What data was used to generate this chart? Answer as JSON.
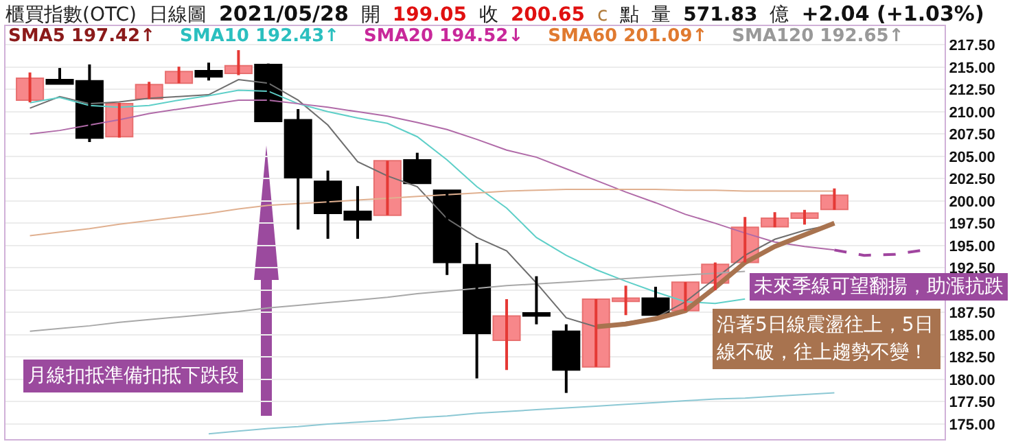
{
  "chart_data": {
    "type": "candlestick",
    "categories": [
      null,
      null,
      null,
      null,
      null,
      null,
      null,
      null,
      null,
      null,
      null,
      null,
      null,
      null,
      null,
      null,
      null,
      null,
      null,
      null,
      null,
      null,
      null,
      null,
      null,
      null,
      null,
      null,
      null,
      null,
      null
    ],
    "ohlc": [
      [
        211.3,
        214.4,
        211.05,
        213.76
      ],
      [
        213.6,
        214.9,
        213.1,
        213.1
      ],
      [
        213.46,
        215.3,
        206.6,
        207.05
      ],
      [
        207.2,
        211.0,
        207.1,
        210.9
      ],
      [
        211.45,
        213.35,
        211.45,
        213.05
      ],
      [
        213.2,
        215.05,
        213.2,
        214.5
      ],
      [
        214.6,
        215.5,
        213.5,
        213.9
      ],
      [
        214.3,
        216.9,
        214.1,
        215.15
      ],
      [
        215.3,
        215.4,
        208.85,
        208.9
      ],
      [
        209.1,
        210.3,
        196.8,
        202.6
      ],
      [
        202.2,
        203.4,
        195.76,
        198.6
      ],
      [
        198.84,
        201.66,
        195.76,
        197.87
      ],
      [
        198.4,
        204.5,
        198.4,
        204.5
      ],
      [
        204.6,
        205.4,
        201.97,
        201.97
      ],
      [
        201.2,
        201.2,
        191.7,
        193.1
      ],
      [
        192.85,
        195.3,
        180.1,
        185.15
      ],
      [
        184.38,
        188.99,
        181.05,
        187.1
      ],
      [
        187.46,
        191.56,
        186.17,
        187.1
      ],
      [
        185.4,
        186.17,
        178.48,
        181.05
      ],
      [
        181.4,
        188.99,
        181.4,
        188.99
      ],
      [
        188.74,
        190.5,
        187.2,
        189.1
      ],
      [
        189.1,
        190.38,
        187.2,
        187.2
      ],
      [
        187.7,
        190.9,
        187.7,
        190.9
      ],
      [
        190.8,
        193.1,
        190.0,
        192.9
      ],
      [
        193.1,
        198.2,
        193.1,
        197.05
      ],
      [
        197.1,
        198.74,
        197.05,
        198.07
      ],
      [
        198.07,
        199.0,
        197.35,
        198.64
      ],
      [
        199.05,
        201.4,
        199.0,
        200.65
      ],
      null,
      null,
      null
    ],
    "series": [
      {
        "type": "line",
        "color": "#6e6e6e",
        "values": [
          210.4,
          211.7,
          210.9,
          211.1,
          211.5,
          211.7,
          211.9,
          213.6,
          213.2,
          211.3,
          208.5,
          204.4,
          202.8,
          201.6,
          198.0,
          195.9,
          194.4,
          190.8,
          186.9,
          185.9,
          186.4,
          186.9,
          188.7,
          191.3,
          193.9,
          195.7,
          196.7,
          197.4,
          null,
          null,
          null
        ]
      },
      {
        "type": "line",
        "color": "#5ecfc8",
        "values": [
          211.0,
          211.6,
          210.7,
          210.5,
          210.7,
          211.3,
          211.8,
          212.4,
          212.3,
          210.9,
          210.0,
          209.3,
          208.7,
          207.2,
          204.6,
          201.6,
          199.2,
          195.9,
          193.9,
          192.3,
          191.0,
          189.8,
          188.7,
          188.5,
          189.0,
          null,
          null,
          null,
          null,
          null,
          null
        ]
      },
      {
        "type": "line",
        "color": "#b06aa8",
        "values": [
          207.5,
          207.9,
          208.5,
          209.1,
          209.8,
          210.3,
          210.8,
          211.3,
          211.3,
          210.9,
          210.5,
          210.0,
          209.5,
          208.8,
          208.0,
          206.9,
          205.7,
          204.9,
          203.6,
          202.3,
          201.0,
          199.8,
          198.5,
          197.5,
          196.4,
          195.4,
          194.9,
          194.5,
          null,
          null,
          null
        ]
      },
      {
        "type": "line",
        "color": "#e0b090",
        "values": [
          196.1,
          196.5,
          196.9,
          197.4,
          197.8,
          198.2,
          198.6,
          199.1,
          199.5,
          199.7,
          199.9,
          200.1,
          200.3,
          200.5,
          200.7,
          200.9,
          201.1,
          201.2,
          201.3,
          201.3,
          201.3,
          201.3,
          201.2,
          201.2,
          201.1,
          201.1,
          201.1,
          201.1,
          null,
          null,
          null
        ]
      },
      {
        "type": "line",
        "color": "#a8a8a8",
        "values": [
          185.4,
          185.7,
          186.0,
          186.4,
          186.7,
          187.0,
          187.3,
          187.6,
          188.0,
          188.3,
          188.6,
          188.9,
          189.2,
          189.6,
          189.9,
          190.2,
          190.5,
          190.7,
          190.9,
          191.1,
          191.3,
          191.5,
          191.7,
          191.9,
          192.1,
          null,
          null,
          null,
          null,
          null,
          null
        ]
      },
      {
        "type": "line",
        "color": "#8cc8d4",
        "values": [
          null,
          null,
          null,
          null,
          null,
          null,
          173.9,
          174.2,
          174.5,
          174.7,
          175.0,
          175.2,
          175.4,
          175.7,
          175.9,
          176.2,
          176.4,
          176.6,
          176.8,
          177.0,
          177.2,
          177.4,
          177.6,
          177.8,
          177.9,
          178.1,
          178.3,
          178.5,
          null,
          null,
          null
        ]
      },
      {
        "type": "line",
        "color": "#a8734f",
        "line_style": "solid",
        "values": [
          null,
          null,
          null,
          null,
          null,
          null,
          null,
          null,
          null,
          null,
          null,
          null,
          null,
          null,
          null,
          null,
          null,
          null,
          null,
          185.9,
          186.2,
          186.8,
          187.7,
          190.3,
          193.1,
          194.9,
          196.2,
          197.5,
          null,
          null,
          null
        ]
      },
      {
        "type": "line",
        "color": "#a0459f",
        "line_style": "dashed",
        "values": [
          null,
          null,
          null,
          null,
          null,
          null,
          null,
          null,
          null,
          null,
          null,
          null,
          null,
          null,
          null,
          null,
          null,
          null,
          null,
          null,
          null,
          null,
          null,
          null,
          null,
          null,
          null,
          194.5,
          193.9,
          194.0,
          194.5
        ]
      }
    ],
    "ylim": [
      173.3,
      219.6
    ],
    "yticks": [
      {
        "value": 175,
        "label": "175.00"
      },
      {
        "value": 177.5,
        "label": "177.50"
      },
      {
        "value": 180,
        "label": "180.00"
      },
      {
        "value": 182.5,
        "label": "182.50"
      },
      {
        "value": 185,
        "label": "185.00"
      },
      {
        "value": 187.5,
        "label": "187.50"
      },
      {
        "value": 190,
        "label": null
      },
      {
        "value": 192.5,
        "label": "192.50"
      },
      {
        "value": 195,
        "label": "195.00"
      },
      {
        "value": 197.5,
        "label": "197.50"
      },
      {
        "value": 200,
        "label": "200.00"
      },
      {
        "value": 202.5,
        "label": "202.50"
      },
      {
        "value": 205,
        "label": "205.00"
      },
      {
        "value": 207.5,
        "label": "207.50"
      },
      {
        "value": 210,
        "label": "210.00"
      },
      {
        "value": 212.5,
        "label": "212.50"
      },
      {
        "value": 215,
        "label": "215.00"
      },
      {
        "value": 217.5,
        "label": "217.50"
      }
    ],
    "grid": "y",
    "tick_labels": "y",
    "annotations": [
      "櫃買指數(OTC)",
      "日線圖",
      "2021/05/28",
      "開",
      "199.05",
      "收",
      "200.65",
      "c",
      "點",
      "量",
      "571.83",
      "億",
      "+2.04 (+1.03%)",
      "SMA5 197.42↑",
      "SMA10 192.43↑",
      "SMA20 194.52↓",
      "SMA60 201.09↑",
      "SMA120 192.65↑",
      "月線扣抵準備扣抵下跌段",
      "未來季線可望翻揚，助漲抗跌",
      "沿著5日線震盪往上，5日線不破，往上趨勢不變！"
    ]
  }
}
